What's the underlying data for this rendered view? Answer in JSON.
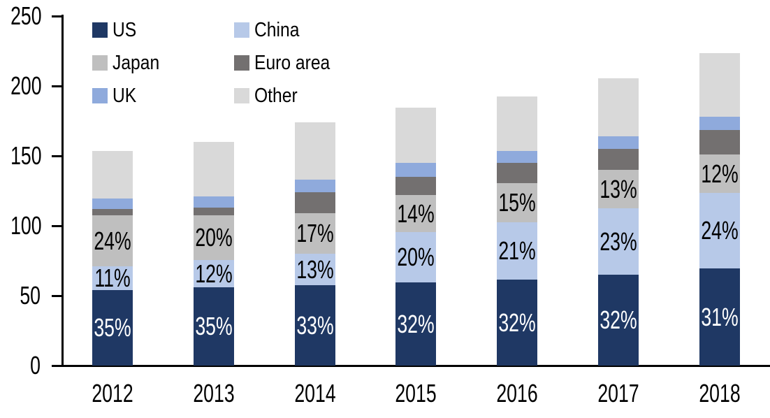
{
  "chart_data": {
    "type": "bar",
    "subtype": "stacked-vertical",
    "title": "",
    "xlabel": "",
    "ylabel": "",
    "categories": [
      "2012",
      "2013",
      "2014",
      "2015",
      "2016",
      "2017",
      "2018"
    ],
    "ylim": [
      0,
      250
    ],
    "yticks": [
      "0",
      "50",
      "100",
      "150",
      "200",
      "250"
    ],
    "grid": false,
    "legend_position": "top-left-two-columns",
    "background_color": "#FFFFFF",
    "axis_color": "#000000",
    "series": [
      {
        "name": "US",
        "color": "#1F3864",
        "label_text_color": "#FFFFFF",
        "values": [
          54,
          56,
          57.5,
          59.5,
          61.5,
          65,
          69.5
        ],
        "segment_labels": [
          "35%",
          "35%",
          "33%",
          "32%",
          "32%",
          "32%",
          "31%"
        ]
      },
      {
        "name": "China",
        "color": "#B7C9E8",
        "label_text_color": "#000000",
        "values": [
          17,
          19.5,
          22.5,
          36,
          41,
          47.5,
          54
        ],
        "segment_labels": [
          "11%",
          "12%",
          "13%",
          "20%",
          "21%",
          "23%",
          "24%"
        ]
      },
      {
        "name": "Japan",
        "color": "#BFBFBF",
        "label_text_color": "#000000",
        "values": [
          36.5,
          32,
          29,
          26.5,
          28,
          27.5,
          27.5
        ],
        "segment_labels": [
          "24%",
          "20%",
          "17%",
          "14%",
          "15%",
          "13%",
          "12%"
        ]
      },
      {
        "name": "Euro area",
        "color": "#737070",
        "label_text_color": "#000000",
        "values": [
          4.5,
          5.5,
          15,
          13,
          14.5,
          15,
          17.5
        ],
        "segment_labels": [
          "",
          "",
          "",
          "",
          "",
          "",
          ""
        ]
      },
      {
        "name": "UK",
        "color": "#8FAADC",
        "label_text_color": "#000000",
        "values": [
          7.5,
          8,
          9,
          10,
          8.5,
          9,
          9.5
        ],
        "segment_labels": [
          "",
          "",
          "",
          "",
          "",
          "",
          ""
        ]
      },
      {
        "name": "Other",
        "color": "#D9D9D9",
        "label_text_color": "#000000",
        "values": [
          34,
          39,
          41,
          39.5,
          39,
          41.5,
          45.5
        ],
        "segment_labels": [
          "",
          "",
          "",
          "",
          "",
          "",
          ""
        ]
      }
    ],
    "stacked_totals": [
      153.5,
      160,
      174,
      184.5,
      192.5,
      205.5,
      223.5
    ],
    "legend_entries": [
      "US",
      "China",
      "Japan",
      "Euro area",
      "UK",
      "Other"
    ]
  }
}
